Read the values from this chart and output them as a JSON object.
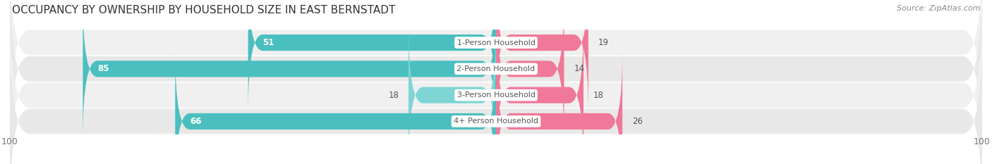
{
  "title": "OCCUPANCY BY OWNERSHIP BY HOUSEHOLD SIZE IN EAST BERNSTADT",
  "source": "Source: ZipAtlas.com",
  "categories": [
    "1-Person Household",
    "2-Person Household",
    "3-Person Household",
    "4+ Person Household"
  ],
  "owner_values": [
    51,
    85,
    18,
    66
  ],
  "renter_values": [
    19,
    14,
    18,
    26
  ],
  "owner_color": "#4BBFBF",
  "renter_color": "#F07899",
  "row_bg_colors": [
    "#F0F0F0",
    "#E8E8E8",
    "#F0F0F0",
    "#E8E8E8"
  ],
  "max_value": 100,
  "title_fontsize": 11,
  "label_fontsize": 8.5,
  "tick_fontsize": 9,
  "source_fontsize": 8,
  "legend_fontsize": 8.5,
  "bar_height": 0.62,
  "background_color": "#FFFFFF"
}
